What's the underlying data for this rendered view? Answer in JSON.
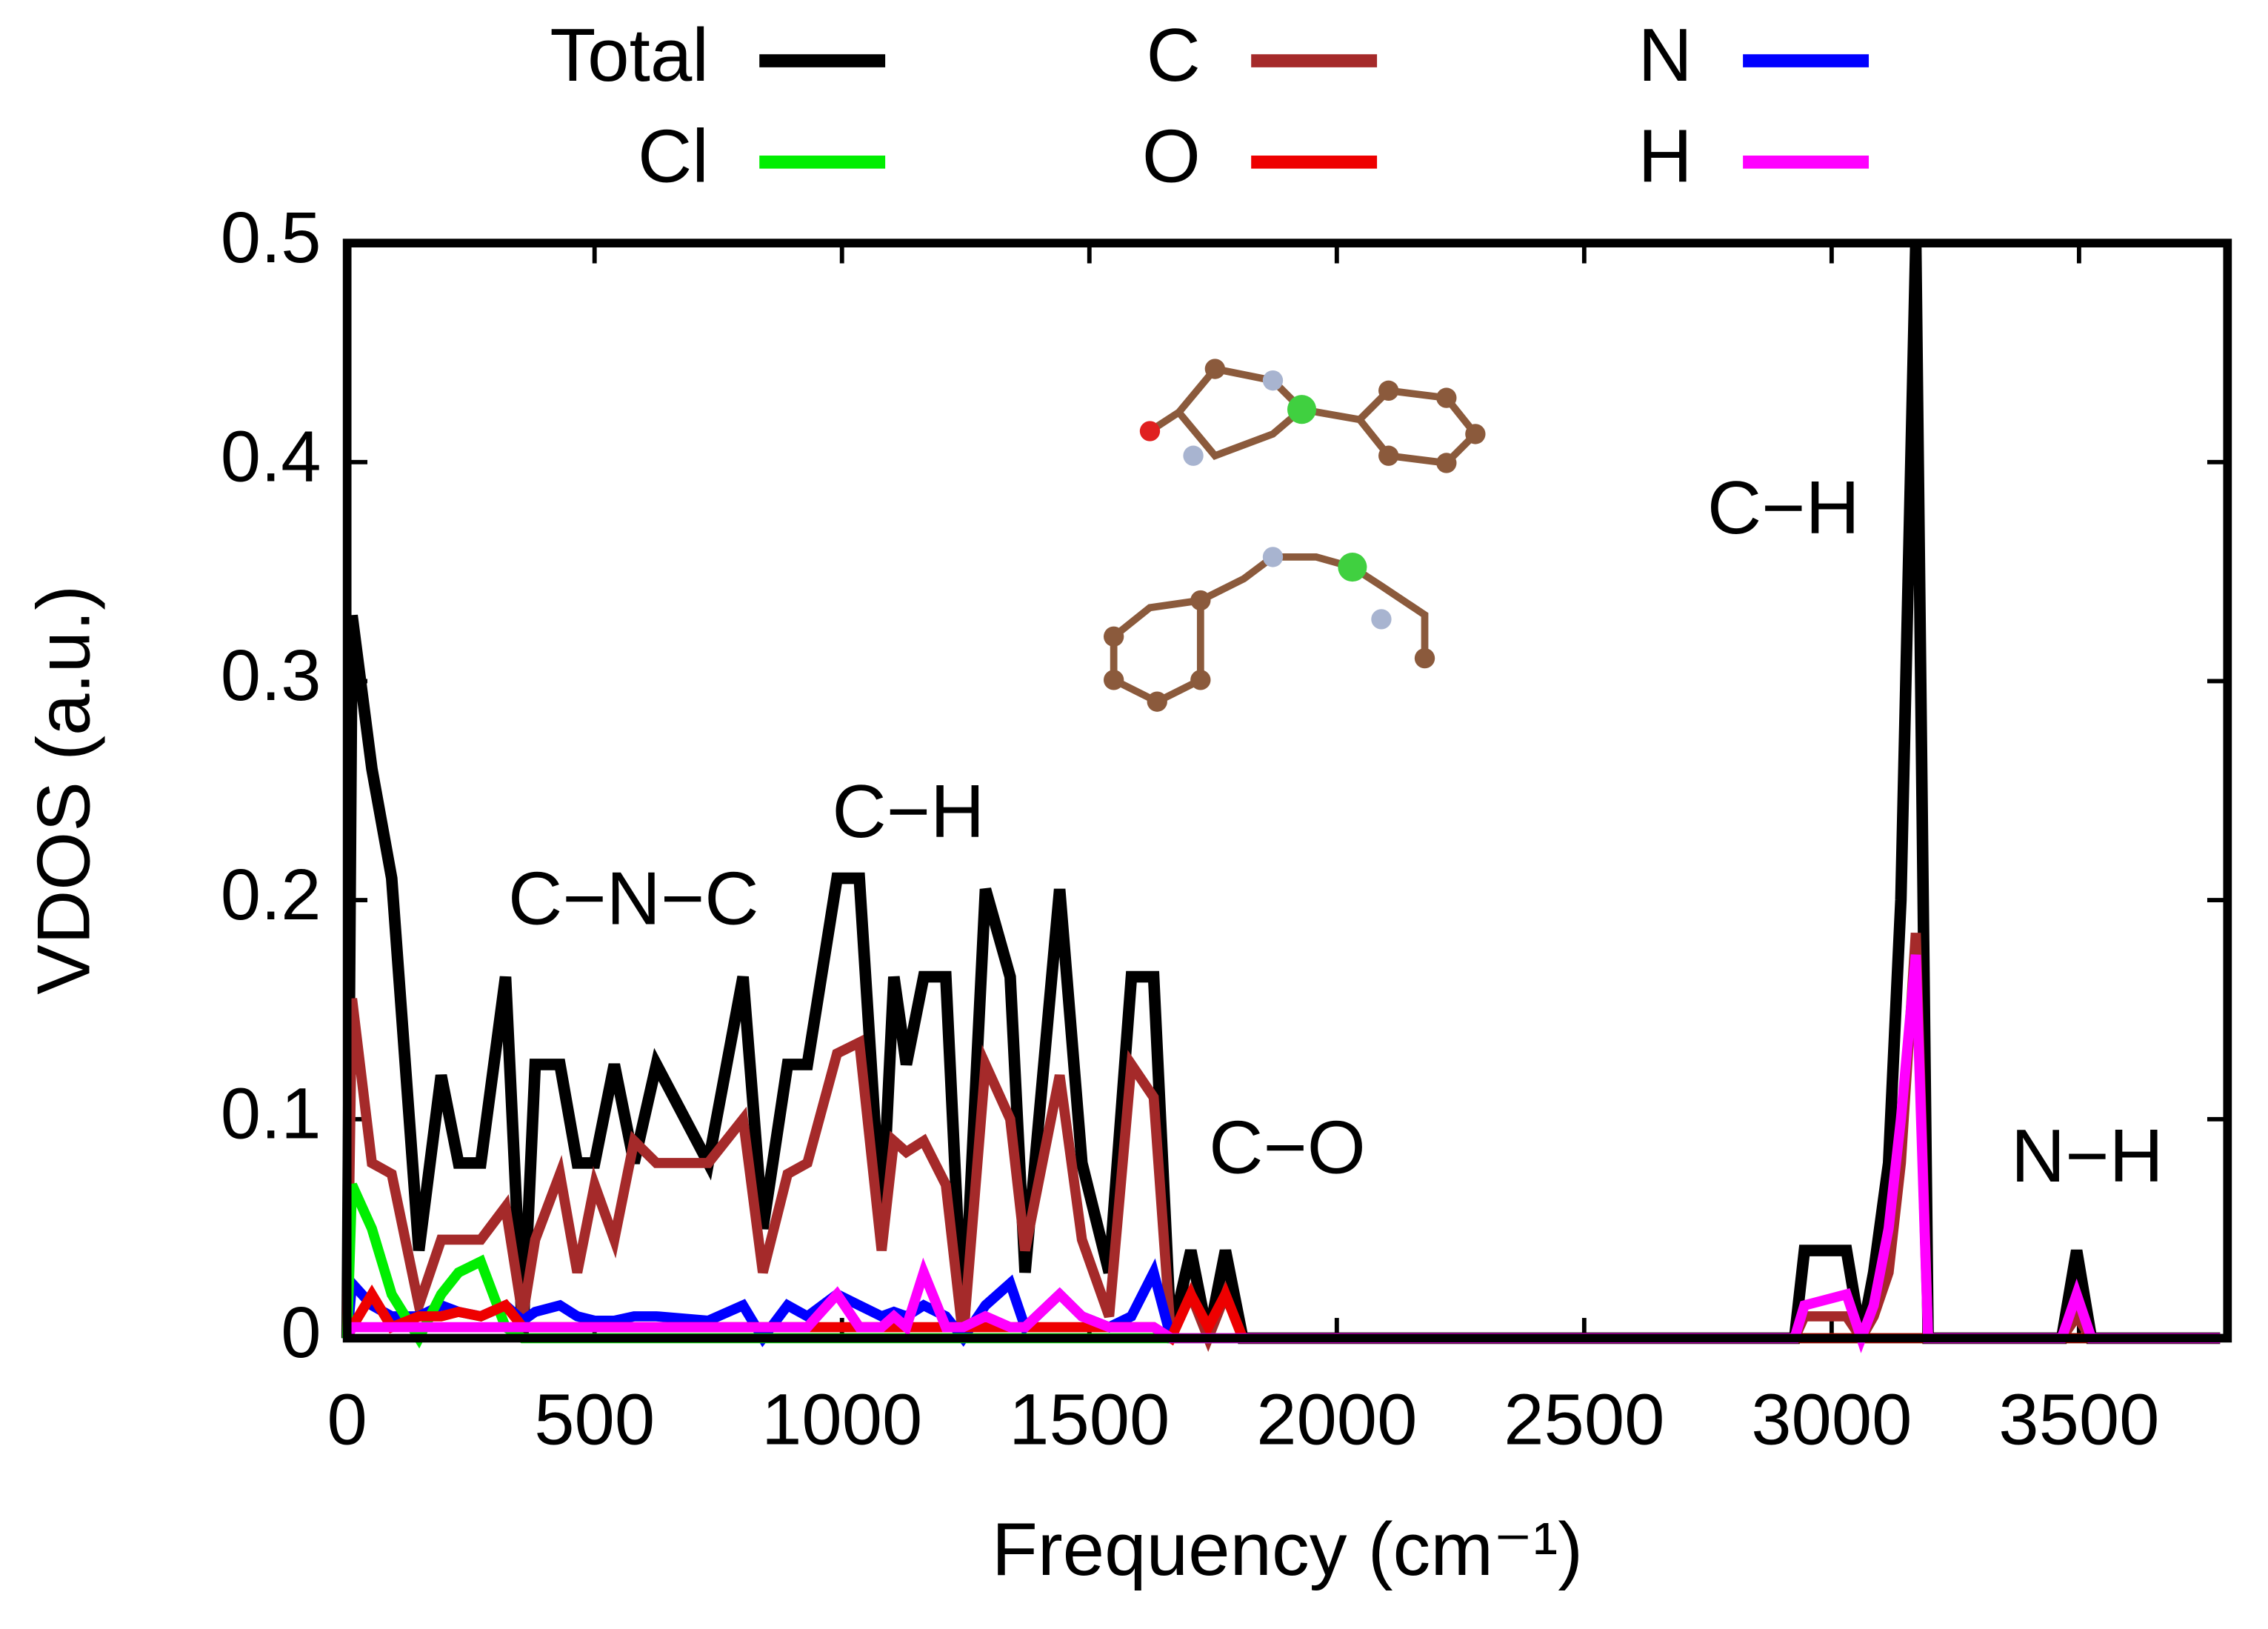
{
  "chart_data": {
    "type": "line",
    "xlabel": "Frequency (cm⁻¹)",
    "ylabel": "VDOS (a.u.)",
    "annotations": [
      "C−N−C",
      "C−H",
      "C−O",
      "C−H",
      "N−H"
    ],
    "x": [
      0,
      10,
      50,
      90,
      145,
      190,
      225,
      270,
      320,
      355,
      380,
      430,
      465,
      500,
      540,
      580,
      625,
      730,
      800,
      840,
      890,
      930,
      990,
      1035,
      1080,
      1105,
      1130,
      1165,
      1210,
      1245,
      1290,
      1340,
      1370,
      1440,
      1485,
      1540,
      1585,
      1630,
      1665,
      1705,
      1740,
      1775,
      1810,
      2925,
      2945,
      3030,
      3060,
      3085,
      3115,
      3140,
      3170,
      3195,
      3465,
      3495,
      3525,
      3785
    ],
    "series": [
      {
        "name": "Total",
        "color": "#000000",
        "values": [
          0,
          0.33,
          0.26,
          0.21,
          0.04,
          0.12,
          0.08,
          0.08,
          0.165,
          0.0,
          0.125,
          0.125,
          0.08,
          0.08,
          0.125,
          0.08,
          0.125,
          0.08,
          0.165,
          0.05,
          0.125,
          0.125,
          0.21,
          0.21,
          0.05,
          0.165,
          0.125,
          0.165,
          0.165,
          0.0,
          0.205,
          0.165,
          0.03,
          0.205,
          0.08,
          0.03,
          0.165,
          0.165,
          0.0,
          0.04,
          0.0,
          0.04,
          0.0,
          0.0,
          0.04,
          0.04,
          0.0,
          0.03,
          0.08,
          0.2,
          0.5,
          0.0,
          0.0,
          0.04,
          0.0,
          0.0
        ]
      },
      {
        "name": "C",
        "color": "#a52a2a",
        "values": [
          0,
          0.155,
          0.08,
          0.075,
          0.015,
          0.045,
          0.045,
          0.045,
          0.06,
          0.01,
          0.045,
          0.075,
          0.03,
          0.07,
          0.045,
          0.09,
          0.08,
          0.08,
          0.1,
          0.03,
          0.075,
          0.08,
          0.13,
          0.135,
          0.04,
          0.09,
          0.085,
          0.09,
          0.07,
          0.0,
          0.125,
          0.1,
          0.04,
          0.12,
          0.045,
          0.01,
          0.125,
          0.11,
          0.0,
          0.02,
          0.0,
          0.02,
          0.0,
          0.0,
          0.01,
          0.01,
          0.0,
          0.01,
          0.03,
          0.08,
          0.185,
          0.0,
          0.0,
          0.01,
          0.0,
          0.0
        ]
      },
      {
        "name": "N",
        "color": "#0000ff",
        "values": [
          0,
          0.025,
          0.015,
          0.01,
          0.01,
          0.015,
          0.012,
          0.01,
          0.015,
          0.008,
          0.012,
          0.015,
          0.01,
          0.008,
          0.008,
          0.01,
          0.01,
          0.008,
          0.015,
          0.0,
          0.015,
          0.01,
          0.02,
          0.015,
          0.01,
          0.012,
          0.01,
          0.015,
          0.01,
          0.0,
          0.015,
          0.025,
          0.005,
          0.02,
          0.01,
          0.005,
          0.01,
          0.03,
          0.0,
          0,
          0,
          0,
          0,
          0,
          0,
          0,
          0,
          0,
          0,
          0,
          0,
          0,
          0,
          0,
          0,
          0
        ]
      },
      {
        "name": "Cl",
        "color": "#00ee00",
        "values": [
          0,
          0.07,
          0.05,
          0.02,
          0.0,
          0.02,
          0.03,
          0.035,
          0.005,
          0,
          0,
          0,
          0,
          0,
          0,
          0,
          0,
          0,
          0,
          0,
          0,
          0,
          0,
          0,
          0,
          0,
          0,
          0,
          0,
          0,
          0,
          0,
          0,
          0,
          0,
          0,
          0,
          0,
          0,
          0,
          0,
          0,
          0,
          0,
          0,
          0,
          0,
          0,
          0,
          0,
          0,
          0,
          0,
          0,
          0,
          0
        ]
      },
      {
        "name": "O",
        "color": "#ee0000",
        "values": [
          0,
          0.005,
          0.02,
          0.005,
          0.01,
          0.01,
          0.012,
          0.01,
          0.015,
          0.005,
          0.005,
          0.005,
          0.005,
          0.005,
          0.005,
          0.005,
          0.005,
          0.005,
          0.005,
          0.005,
          0.005,
          0.005,
          0.005,
          0.005,
          0.005,
          0.005,
          0.005,
          0.005,
          0.005,
          0.005,
          0.005,
          0.005,
          0.005,
          0.005,
          0.005,
          0.005,
          0.005,
          0.005,
          0.0,
          0.02,
          0.005,
          0.02,
          0.0,
          0,
          0,
          0,
          0,
          0,
          0,
          0,
          0,
          0,
          0,
          0,
          0,
          0
        ]
      },
      {
        "name": "H",
        "color": "#ff00ff",
        "values": [
          0,
          0.005,
          0.005,
          0.005,
          0.005,
          0.005,
          0.005,
          0.005,
          0.005,
          0.005,
          0.005,
          0.005,
          0.005,
          0.005,
          0.005,
          0.005,
          0.005,
          0.005,
          0.005,
          0.005,
          0.005,
          0.005,
          0.02,
          0.005,
          0.005,
          0.01,
          0.005,
          0.03,
          0.005,
          0.005,
          0.01,
          0.005,
          0.005,
          0.02,
          0.01,
          0.005,
          0.005,
          0.005,
          0.0,
          0,
          0,
          0,
          0,
          0,
          0.015,
          0.02,
          0.0,
          0.015,
          0.05,
          0.1,
          0.175,
          0.0,
          0.0,
          0.02,
          0.0,
          0.0
        ]
      }
    ],
    "xlim": [
      0,
      3800
    ],
    "ylim": [
      0,
      0.5
    ],
    "xticks": [
      0,
      500,
      1000,
      1500,
      2000,
      2500,
      3000,
      3500
    ],
    "yticks": [
      0,
      0.1,
      0.2,
      0.3,
      0.4,
      0.5
    ],
    "legend": "top"
  }
}
